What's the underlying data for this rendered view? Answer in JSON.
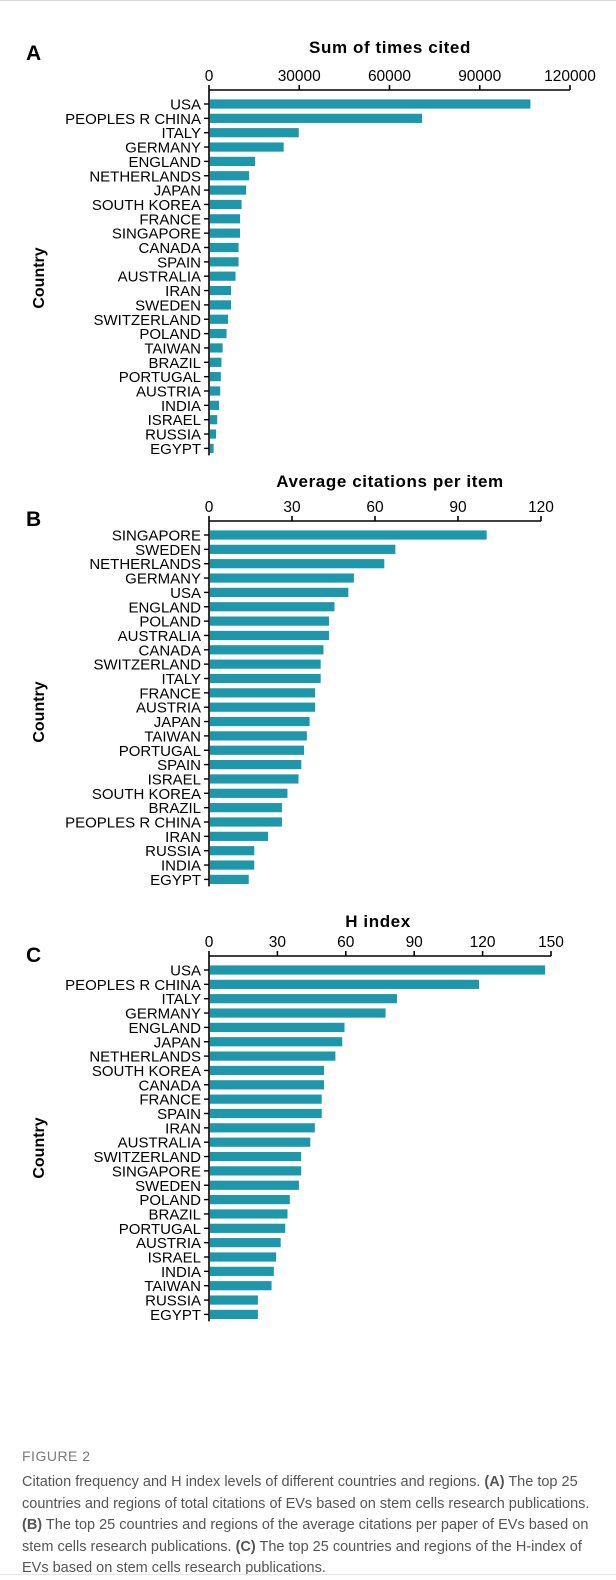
{
  "bar_color": "#1f97aa",
  "chart_data": [
    {
      "type": "bar",
      "orientation": "horizontal",
      "panel_label": "A",
      "title": "Sum of times cited",
      "ylabel": "Country",
      "xlim": [
        0,
        120000
      ],
      "xticks": [
        "0",
        "30000",
        "60000",
        "90000",
        "120000"
      ],
      "categories": [
        "USA",
        "PEOPLES R CHINA",
        "ITALY",
        "GERMANY",
        "ENGLAND",
        "NETHERLANDS",
        "JAPAN",
        "SOUTH KOREA",
        "FRANCE",
        "SINGAPORE",
        "CANADA",
        "SPAIN",
        "AUSTRALIA",
        "IRAN",
        "SWEDEN",
        "SWITZERLAND",
        "POLAND",
        "TAIWAN",
        "BRAZIL",
        "PORTUGAL",
        "AUSTRIA",
        "INDIA",
        "ISRAEL",
        "RUSSIA",
        "EGYPT"
      ],
      "values": [
        106500,
        70500,
        29500,
        24500,
        15000,
        13000,
        12000,
        10500,
        10000,
        10000,
        9500,
        9500,
        8500,
        7000,
        7000,
        6000,
        5500,
        4200,
        3800,
        3600,
        3400,
        3000,
        2400,
        2000,
        1200
      ]
    },
    {
      "type": "bar",
      "orientation": "horizontal",
      "panel_label": "B",
      "title": "Average citations per item",
      "ylabel": "Country",
      "xlim": [
        0,
        120
      ],
      "xticks": [
        "0",
        "30",
        "60",
        "90",
        "120"
      ],
      "categories": [
        "SINGAPORE",
        "SWEDEN",
        "NETHERLANDS",
        "GERMANY",
        "USA",
        "ENGLAND",
        "POLAND",
        "AUSTRALIA",
        "CANADA",
        "SWITZERLAND",
        "ITALY",
        "FRANCE",
        "AUSTRIA",
        "JAPAN",
        "TAIWAN",
        "PORTUGAL",
        "SPAIN",
        "ISRAEL",
        "SOUTH KOREA",
        "BRAZIL",
        "PEOPLES R CHINA",
        "IRAN",
        "RUSSIA",
        "INDIA",
        "EGYPT"
      ],
      "values": [
        100,
        67,
        63,
        52,
        50,
        45,
        43,
        43,
        41,
        40,
        40,
        38,
        38,
        36,
        35,
        34,
        33,
        32,
        28,
        26,
        26,
        21,
        16,
        16,
        14
      ]
    },
    {
      "type": "bar",
      "orientation": "horizontal",
      "panel_label": "C",
      "title": "H index",
      "ylabel": "Country",
      "xlim": [
        0,
        150
      ],
      "xticks": [
        "0",
        "30",
        "60",
        "90",
        "120",
        "150"
      ],
      "categories": [
        "USA",
        "PEOPLES R CHINA",
        "ITALY",
        "GERMANY",
        "ENGLAND",
        "JAPAN",
        "NETHERLANDS",
        "SOUTH KOREA",
        "CANADA",
        "FRANCE",
        "SPAIN",
        "IRAN",
        "AUSTRALIA",
        "SWITZERLAND",
        "SINGAPORE",
        "SWEDEN",
        "POLAND",
        "BRAZIL",
        "PORTUGAL",
        "AUSTRIA",
        "ISRAEL",
        "INDIA",
        "TAIWAN",
        "RUSSIA",
        "EGYPT"
      ],
      "values": [
        147,
        118,
        82,
        77,
        59,
        58,
        55,
        50,
        50,
        49,
        49,
        46,
        44,
        40,
        40,
        39,
        35,
        34,
        33,
        31,
        29,
        28,
        27,
        21,
        21
      ]
    }
  ],
  "caption": {
    "label": "FIGURE 2",
    "intro": "Citation frequency and H index levels of different countries and regions. ",
    "a_tag": "(A)",
    "a_text": " The top 25 countries and regions of total citations of EVs based on stem cells research publications. ",
    "b_tag": "(B)",
    "b_text": " The top 25 countries and regions of the average citations per paper of EVs based on stem cells research publications. ",
    "c_tag": "(C)",
    "c_text": " The top 25 countries and regions of the H-index of EVs based on stem cells research publications."
  }
}
